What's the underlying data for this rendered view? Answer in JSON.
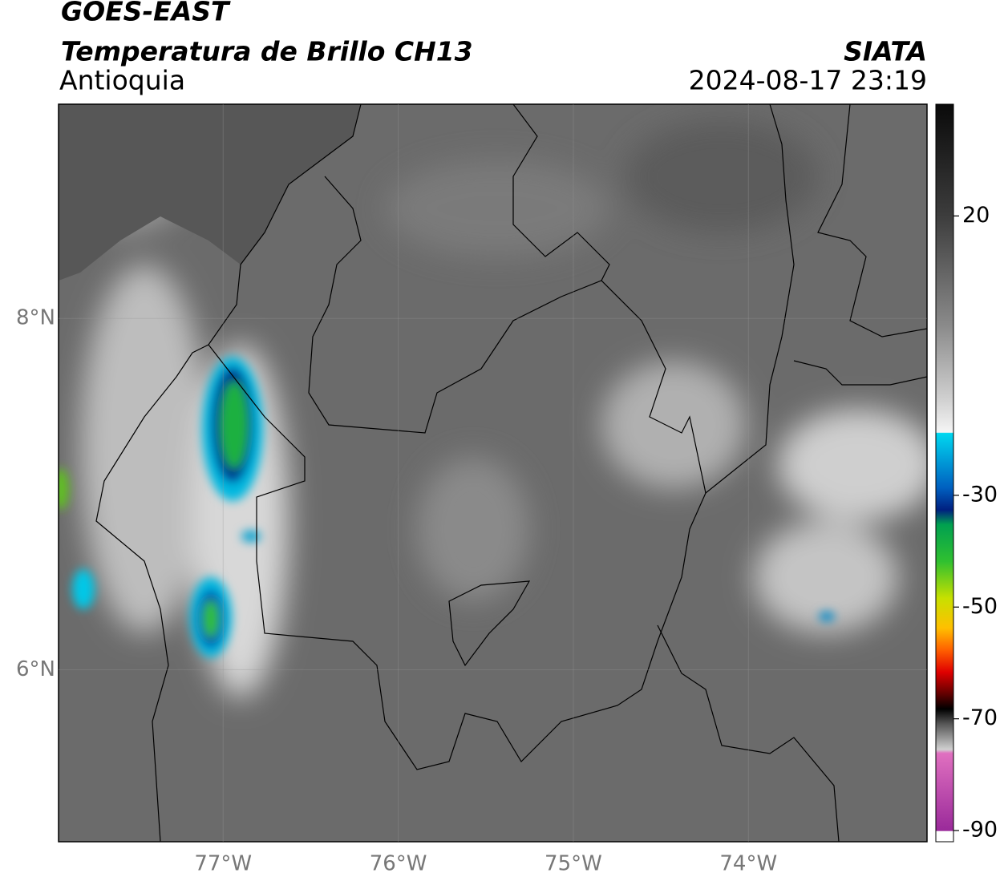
{
  "map": {
    "title": "GOES-EAST",
    "subtitle": "Temperatura de Brillo CH13",
    "organization": "SIATA",
    "region": "Antioquia",
    "datetime": "2024-08-17 23:19",
    "xlim": [
      -77.94,
      -72.98
    ],
    "ylim": [
      5.02,
      9.22
    ],
    "xticks": [
      {
        "value": -77,
        "label": "77°W"
      },
      {
        "value": -76,
        "label": "76°W"
      },
      {
        "value": -75,
        "label": "75°W"
      },
      {
        "value": -74,
        "label": "74°W"
      }
    ],
    "yticks": [
      {
        "value": 8,
        "label": "8°N"
      },
      {
        "value": 6,
        "label": "6°N"
      }
    ],
    "grid": true,
    "colorbar": {
      "lim": [
        -92,
        40
      ],
      "ticks": [
        20,
        -30,
        -50,
        -70,
        -90
      ]
    }
  }
}
